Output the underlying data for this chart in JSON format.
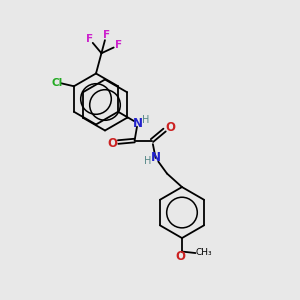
{
  "background_color": "#e8e8e8",
  "bond_color": "#000000",
  "colors": {
    "N": "#2222cc",
    "O": "#cc2222",
    "Cl": "#22aa22",
    "F": "#cc22cc",
    "H": "#558888",
    "C": "#000000"
  },
  "font_size": 8.0,
  "figsize": [
    3.0,
    3.0
  ],
  "dpi": 100,
  "lw": 1.3
}
